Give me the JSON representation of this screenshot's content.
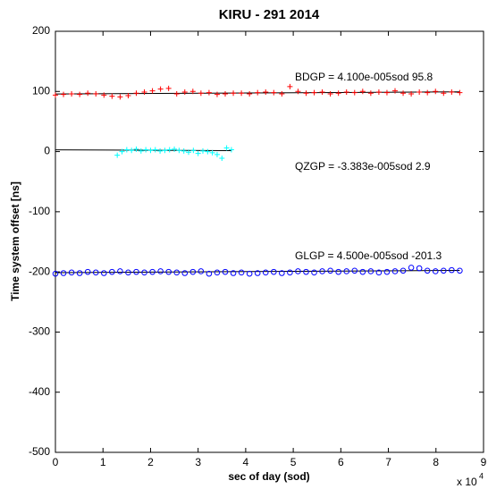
{
  "chart_data": {
    "type": "scatter",
    "title": "KIRU - 291 2014",
    "x_label": "sec of day (sod)",
    "y_label": "Time system offset [ns]",
    "x_exponent_base": "x 10",
    "x_exponent": "4",
    "xlim": [
      0,
      9
    ],
    "ylim": [
      -500,
      200
    ],
    "xticks": [
      0,
      1,
      2,
      3,
      4,
      5,
      6,
      7,
      8,
      9
    ],
    "yticks": [
      -500,
      -400,
      -300,
      -200,
      -100,
      0,
      100,
      200
    ],
    "grid": false,
    "series": [
      {
        "name": "BDGP",
        "color": "#ff0000",
        "marker": "plus",
        "x": [
          0.0,
          0.17,
          0.34,
          0.51,
          0.68,
          0.85,
          1.02,
          1.19,
          1.36,
          1.53,
          1.7,
          1.87,
          2.04,
          2.21,
          2.38,
          2.55,
          2.72,
          2.89,
          3.06,
          3.23,
          3.4,
          3.57,
          3.74,
          3.91,
          4.08,
          4.25,
          4.42,
          4.59,
          4.76,
          4.93,
          5.1,
          5.27,
          5.44,
          5.61,
          5.78,
          5.95,
          6.12,
          6.29,
          6.46,
          6.63,
          6.8,
          6.97,
          7.14,
          7.31,
          7.48,
          7.65,
          7.82,
          7.99,
          8.16,
          8.33,
          8.5
        ],
        "values": [
          94,
          95,
          96,
          95,
          97,
          96,
          94,
          92,
          91,
          93,
          97,
          99,
          101,
          104,
          105,
          96,
          99,
          100,
          97,
          98,
          95,
          96,
          97,
          97,
          96,
          98,
          99,
          98,
          96,
          108,
          100,
          97,
          98,
          99,
          96,
          97,
          99,
          98,
          100,
          97,
          99,
          98,
          101,
          97,
          96,
          99,
          98,
          100,
          97,
          99,
          98
        ]
      },
      {
        "name": "QZGP",
        "color": "#00ffff",
        "marker": "plus",
        "x": [
          1.3,
          1.4,
          1.5,
          1.6,
          1.7,
          1.8,
          1.9,
          2.0,
          2.1,
          2.2,
          2.3,
          2.4,
          2.5,
          2.6,
          2.7,
          2.8,
          2.9,
          3.0,
          3.1,
          3.2,
          3.3,
          3.4,
          3.5,
          3.6,
          3.7
        ],
        "values": [
          -6,
          0,
          3,
          2,
          4,
          1,
          3,
          2,
          3,
          1,
          2,
          3,
          4,
          2,
          1,
          -1,
          2,
          -3,
          1,
          0,
          -2,
          -5,
          -11,
          6,
          3
        ]
      },
      {
        "name": "GLGP",
        "color": "#0000ff",
        "marker": "circle",
        "x": [
          0.0,
          0.17,
          0.34,
          0.51,
          0.68,
          0.85,
          1.02,
          1.19,
          1.36,
          1.53,
          1.7,
          1.87,
          2.04,
          2.21,
          2.38,
          2.55,
          2.72,
          2.89,
          3.06,
          3.23,
          3.4,
          3.57,
          3.74,
          3.91,
          4.08,
          4.25,
          4.42,
          4.59,
          4.76,
          4.93,
          5.1,
          5.27,
          5.44,
          5.61,
          5.78,
          5.95,
          6.12,
          6.29,
          6.46,
          6.63,
          6.8,
          6.97,
          7.14,
          7.31,
          7.48,
          7.65,
          7.82,
          7.99,
          8.16,
          8.33,
          8.5
        ],
        "values": [
          -203,
          -202,
          -201,
          -202,
          -200,
          -201,
          -202,
          -200,
          -199,
          -201,
          -200,
          -201,
          -200,
          -199,
          -200,
          -201,
          -202,
          -200,
          -199,
          -203,
          -201,
          -200,
          -202,
          -201,
          -203,
          -202,
          -201,
          -200,
          -202,
          -201,
          -199,
          -200,
          -201,
          -199,
          -198,
          -200,
          -199,
          -198,
          -200,
          -199,
          -201,
          -200,
          -199,
          -198,
          -193,
          -194,
          -198,
          -199,
          -198,
          -197,
          -198
        ]
      }
    ],
    "fit_lines": [
      {
        "color": "#000000",
        "x": [
          0,
          8.5
        ],
        "values": [
          95.8,
          99.3
        ]
      },
      {
        "color": "#000000",
        "x": [
          0,
          3.7
        ],
        "values": [
          2.9,
          1.65
        ]
      },
      {
        "color": "#000000",
        "x": [
          0,
          8.5
        ],
        "values": [
          -201.3,
          -197.5
        ]
      }
    ],
    "annotations": [
      "BDGP = 4.100e-005sod 95.8",
      "QZGP = -3.383e-005sod 2.9",
      "GLGP = 4.500e-005sod -201.3"
    ]
  }
}
